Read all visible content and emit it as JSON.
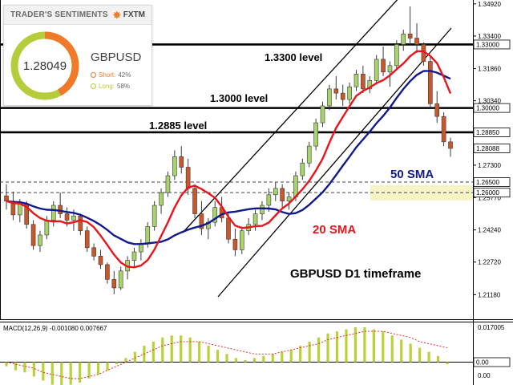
{
  "sentiment": {
    "title": "TRADER'S SENTIMENTS",
    "brand": "FXTM",
    "value": "1.28049",
    "pair": "GBPUSD",
    "short_label": "Short:",
    "short_pct": "42%",
    "long_label": "Long:",
    "long_pct": "58%",
    "short_color": "#f07a2a",
    "long_color": "#b6cc3a"
  },
  "chart_data": {
    "type": "candlestick",
    "title": "GBPUSD D1 timeframe",
    "ylim": [
      1.2055,
      1.3495
    ],
    "price_ticks": [
      "1.34920",
      "1.33400",
      "1.31860",
      "1.30340",
      "1.28850",
      "1.27300",
      "1.25770",
      "1.24240",
      "1.22720",
      "1.21180"
    ],
    "current_price": "1.28088",
    "levels": [
      {
        "value": 1.33,
        "label": "1.3300 level",
        "tag": "1.33000"
      },
      {
        "value": 1.3,
        "label": "1.3000 level",
        "tag": "1.30000"
      },
      {
        "value": 1.2885,
        "label": "1.2885 level",
        "tag": "1.28850"
      }
    ],
    "dashed_levels": [
      {
        "value": 1.265,
        "tag": "1.26500"
      },
      {
        "value": 1.26,
        "tag": "1.26000"
      }
    ],
    "sma": [
      {
        "name": "20 SMA",
        "color": "#e8151b"
      },
      {
        "name": "50 SMA",
        "color": "#101a8c"
      }
    ],
    "candles": [
      [
        1.2585,
        1.264,
        1.252,
        1.256
      ],
      [
        1.256,
        1.2605,
        1.247,
        1.2495
      ],
      [
        1.2495,
        1.257,
        1.246,
        1.2545
      ],
      [
        1.2545,
        1.256,
        1.243,
        1.245
      ],
      [
        1.245,
        1.247,
        1.233,
        1.235
      ],
      [
        1.235,
        1.242,
        1.232,
        1.24
      ],
      [
        1.24,
        1.249,
        1.238,
        1.247
      ],
      [
        1.247,
        1.256,
        1.244,
        1.254
      ],
      [
        1.254,
        1.26,
        1.248,
        1.25
      ],
      [
        1.25,
        1.253,
        1.244,
        1.247
      ],
      [
        1.247,
        1.252,
        1.242,
        1.249
      ],
      [
        1.249,
        1.25,
        1.24,
        1.242
      ],
      [
        1.242,
        1.244,
        1.232,
        1.234
      ],
      [
        1.234,
        1.236,
        1.228,
        1.23
      ],
      [
        1.23,
        1.233,
        1.224,
        1.226
      ],
      [
        1.226,
        1.227,
        1.217,
        1.219
      ],
      [
        1.219,
        1.223,
        1.212,
        1.215
      ],
      [
        1.215,
        1.225,
        1.214,
        1.223
      ],
      [
        1.223,
        1.23,
        1.219,
        1.228
      ],
      [
        1.228,
        1.234,
        1.225,
        1.232
      ],
      [
        1.232,
        1.238,
        1.228,
        1.236
      ],
      [
        1.236,
        1.246,
        1.234,
        1.244
      ],
      [
        1.244,
        1.256,
        1.242,
        1.254
      ],
      [
        1.254,
        1.262,
        1.25,
        1.26
      ],
      [
        1.26,
        1.27,
        1.258,
        1.268
      ],
      [
        1.268,
        1.28,
        1.266,
        1.277
      ],
      [
        1.277,
        1.282,
        1.269,
        1.272
      ],
      [
        1.272,
        1.276,
        1.259,
        1.262
      ],
      [
        1.262,
        1.264,
        1.248,
        1.25
      ],
      [
        1.25,
        1.256,
        1.24,
        1.243
      ],
      [
        1.243,
        1.248,
        1.238,
        1.246
      ],
      [
        1.246,
        1.256,
        1.244,
        1.253
      ],
      [
        1.253,
        1.258,
        1.246,
        1.248
      ],
      [
        1.248,
        1.25,
        1.236,
        1.238
      ],
      [
        1.238,
        1.243,
        1.23,
        1.233
      ],
      [
        1.233,
        1.244,
        1.231,
        1.242
      ],
      [
        1.242,
        1.248,
        1.24,
        1.245
      ],
      [
        1.245,
        1.252,
        1.242,
        1.25
      ],
      [
        1.25,
        1.256,
        1.247,
        1.254
      ],
      [
        1.254,
        1.262,
        1.251,
        1.259
      ],
      [
        1.259,
        1.265,
        1.256,
        1.262
      ],
      [
        1.262,
        1.264,
        1.253,
        1.256
      ],
      [
        1.256,
        1.26,
        1.252,
        1.258
      ],
      [
        1.258,
        1.27,
        1.256,
        1.268
      ],
      [
        1.268,
        1.276,
        1.266,
        1.274
      ],
      [
        1.274,
        1.284,
        1.272,
        1.282
      ],
      [
        1.282,
        1.295,
        1.28,
        1.293
      ],
      [
        1.293,
        1.303,
        1.291,
        1.301
      ],
      [
        1.301,
        1.311,
        1.299,
        1.309
      ],
      [
        1.309,
        1.315,
        1.304,
        1.307
      ],
      [
        1.307,
        1.311,
        1.301,
        1.304
      ],
      [
        1.304,
        1.312,
        1.302,
        1.31
      ],
      [
        1.31,
        1.318,
        1.308,
        1.316
      ],
      [
        1.316,
        1.32,
        1.307,
        1.309
      ],
      [
        1.309,
        1.315,
        1.307,
        1.313
      ],
      [
        1.313,
        1.325,
        1.311,
        1.323
      ],
      [
        1.323,
        1.329,
        1.315,
        1.317
      ],
      [
        1.317,
        1.322,
        1.31,
        1.32
      ],
      [
        1.32,
        1.332,
        1.318,
        1.33
      ],
      [
        1.33,
        1.337,
        1.327,
        1.335
      ],
      [
        1.335,
        1.348,
        1.33,
        1.333
      ],
      [
        1.333,
        1.34,
        1.326,
        1.33
      ],
      [
        1.33,
        1.331,
        1.32,
        1.322
      ],
      [
        1.322,
        1.324,
        1.3,
        1.302
      ],
      [
        1.302,
        1.308,
        1.293,
        1.296
      ],
      [
        1.296,
        1.298,
        1.282,
        1.284
      ],
      [
        1.284,
        1.286,
        1.277,
        1.2809
      ]
    ],
    "macd": {
      "label": "MACD(12,26,9) -0.001080 0.007667",
      "ticks": [
        "0.017005",
        "0.00"
      ],
      "value_tag": "0.00",
      "histogram": [
        -0.002,
        -0.004,
        -0.005,
        -0.007,
        -0.009,
        -0.011,
        -0.012,
        -0.011,
        -0.01,
        -0.008,
        -0.006,
        -0.004,
        -0.001,
        0.002,
        0.005,
        0.008,
        0.01,
        0.012,
        0.013,
        0.013,
        0.012,
        0.01,
        0.008,
        0.006,
        0.004,
        0.002,
        0.001,
        0.002,
        0.003,
        0.004,
        0.005,
        0.006,
        0.008,
        0.01,
        0.012,
        0.014,
        0.015,
        0.016,
        0.017,
        0.017,
        0.016,
        0.015,
        0.013,
        0.011,
        0.009,
        0.007,
        0.005,
        0.003,
        -0.001
      ],
      "signal": [
        0.0,
        -0.001,
        -0.002,
        -0.003,
        -0.005,
        -0.006,
        -0.007,
        -0.008,
        -0.008,
        -0.007,
        -0.006,
        -0.004,
        -0.002,
        0.0,
        0.002,
        0.004,
        0.006,
        0.008,
        0.009,
        0.01,
        0.01,
        0.01,
        0.009,
        0.008,
        0.007,
        0.006,
        0.005,
        0.004,
        0.004,
        0.004,
        0.005,
        0.006,
        0.007,
        0.008,
        0.009,
        0.011,
        0.012,
        0.013,
        0.014,
        0.015,
        0.015,
        0.015,
        0.014,
        0.013,
        0.012,
        0.01,
        0.009,
        0.008,
        0.007
      ]
    }
  }
}
